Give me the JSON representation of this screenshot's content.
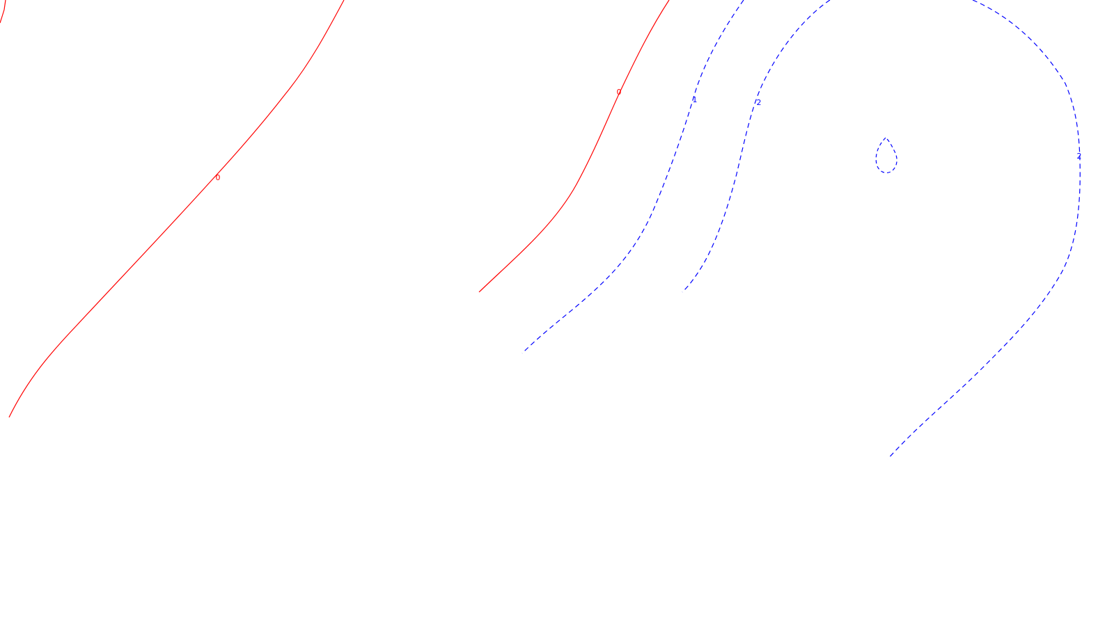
{
  "chart_data": {
    "type": "contour",
    "title": "",
    "xlabel": "",
    "ylabel": "",
    "grid": false,
    "legend": "none",
    "levels": [
      {
        "value": 0,
        "label": "0",
        "color": "#ff0000",
        "style": "solid"
      },
      {
        "value": 1,
        "label": "1",
        "color": "#0000ff",
        "style": "dashed"
      },
      {
        "value": 2,
        "label": "2",
        "color": "#0000ff",
        "style": "dashed"
      }
    ]
  }
}
